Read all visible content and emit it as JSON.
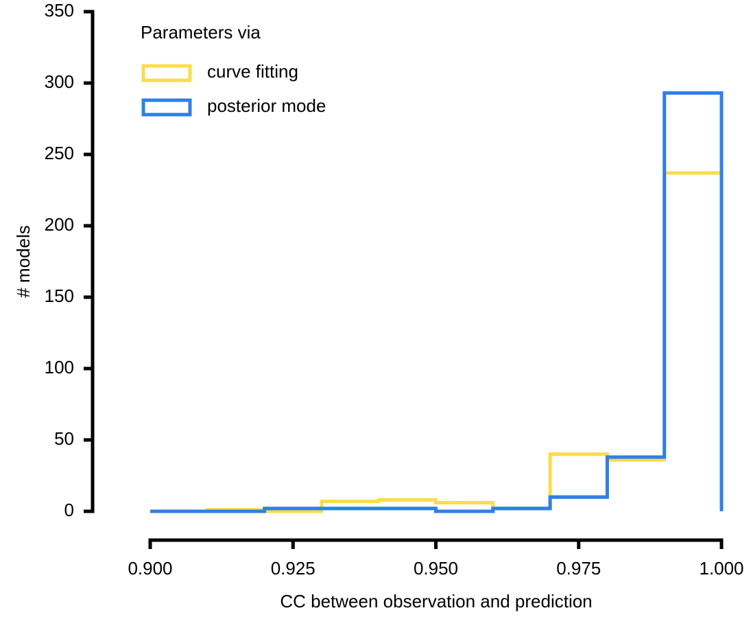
{
  "chart_data": {
    "type": "step-histogram",
    "xlabel": "CC between observation and prediction",
    "ylabel": "# models",
    "legend_title": "Parameters via",
    "legend": "upper left",
    "bins": [
      0.9,
      0.91,
      0.92,
      0.93,
      0.94,
      0.95,
      0.96,
      0.97,
      0.98,
      0.99,
      1.0
    ],
    "series": [
      {
        "name": "curve fitting",
        "color": "#fcdc4d",
        "values": [
          0,
          1,
          0,
          7,
          8,
          6,
          2,
          40,
          36,
          237
        ]
      },
      {
        "name": "posterior mode",
        "color": "#2f80e3",
        "values": [
          0,
          0,
          2,
          2,
          2,
          0,
          2,
          10,
          38,
          293
        ]
      }
    ],
    "xlim": [
      0.9,
      1.0
    ],
    "xticks": [
      {
        "value": 0.9,
        "label": "0.900"
      },
      {
        "value": 0.925,
        "label": "0.925"
      },
      {
        "value": 0.95,
        "label": "0.950"
      },
      {
        "value": 0.975,
        "label": "0.975"
      },
      {
        "value": 1.0,
        "label": "1.000"
      }
    ],
    "ylim": [
      0,
      350
    ],
    "yticks": [
      0,
      50,
      100,
      150,
      200,
      250,
      300,
      350
    ],
    "grid": false
  }
}
